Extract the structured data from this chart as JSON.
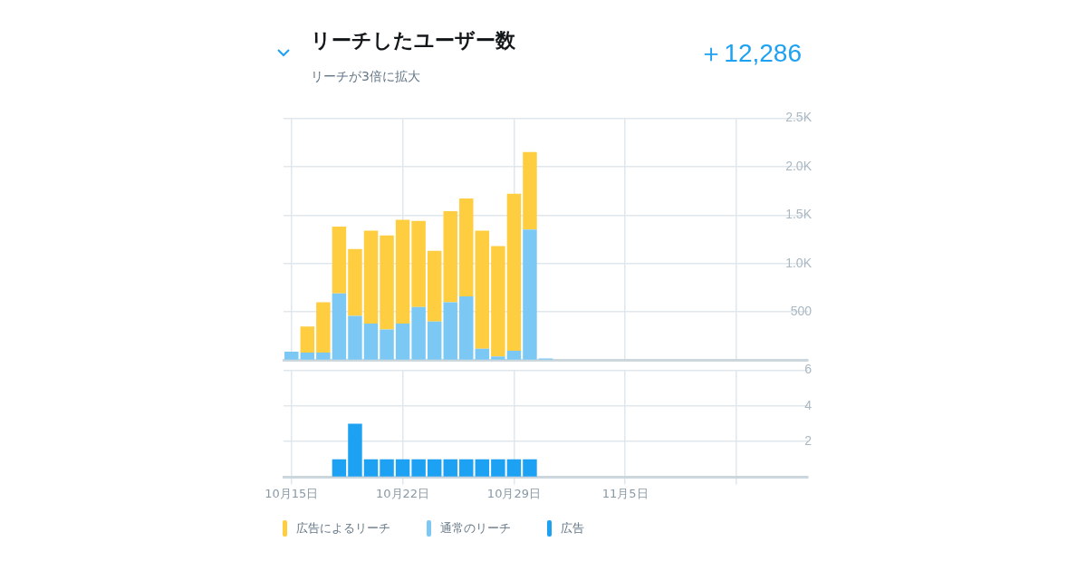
{
  "chart_data": [
    {
      "type": "bar",
      "title": "リーチしたユーザー数",
      "subtitle": "リーチが3倍に拡大",
      "annotations": [
        "＋12,286"
      ],
      "categories": [
        null,
        null,
        null,
        null,
        null,
        null,
        null,
        null,
        null,
        null,
        null,
        null,
        null,
        null,
        null,
        null,
        null,
        null,
        null,
        null,
        null,
        null,
        null,
        null,
        null,
        null,
        null,
        null,
        null,
        null,
        null,
        null,
        null
      ],
      "series": [
        {
          "name": "通常のリーチ",
          "color": "#7cc8f5",
          "values": [
            90,
            80,
            80,
            690,
            460,
            380,
            320,
            380,
            550,
            400,
            600,
            660,
            120,
            40,
            100,
            1350,
            20,
            null,
            null,
            null,
            null,
            null,
            null,
            null,
            null,
            null,
            null,
            null,
            null,
            null,
            null,
            null,
            null
          ]
        },
        {
          "name": "広告によるリーチ",
          "color": "#ffcd40",
          "values": [
            null,
            270,
            520,
            690,
            690,
            960,
            970,
            1070,
            890,
            730,
            940,
            1010,
            1220,
            1140,
            1620,
            800,
            null,
            null,
            null,
            null,
            null,
            null,
            null,
            null,
            null,
            null,
            null,
            null,
            null,
            null,
            null,
            null,
            null
          ]
        }
      ],
      "stacked": true,
      "ylim": [
        0,
        2500
      ],
      "yticks": [
        {
          "value": 0,
          "label": null
        },
        500,
        {
          "value": 1000,
          "label": "1.0K"
        },
        {
          "value": 1500,
          "label": "1.5K"
        },
        {
          "value": 2000,
          "label": "2.0K"
        },
        {
          "value": 2500,
          "label": "2.5K"
        }
      ],
      "grid": true,
      "legend": "bottom",
      "tick_labels": "y"
    },
    {
      "type": "bar",
      "categories": [
        "10月15日",
        null,
        null,
        null,
        null,
        null,
        null,
        "10月22日",
        null,
        null,
        null,
        null,
        null,
        null,
        "10月29日",
        null,
        null,
        null,
        null,
        null,
        null,
        "11月5日",
        null,
        null,
        null,
        null,
        null,
        null,
        null,
        null,
        null,
        null,
        null
      ],
      "series": [
        {
          "name": "広告",
          "color": "#1da1f2",
          "values": [
            null,
            null,
            null,
            1,
            3,
            1,
            1,
            1,
            1,
            1,
            1,
            1,
            1,
            1,
            1,
            1,
            null,
            null,
            null,
            null,
            null,
            null,
            null,
            null,
            null,
            null,
            null,
            null,
            null,
            null,
            null,
            null,
            null
          ]
        }
      ],
      "ylim": [
        0,
        6
      ],
      "yticks": [
        {
          "value": 0,
          "label": null
        },
        2,
        4,
        6
      ],
      "grid": true,
      "legend": "bottom"
    }
  ]
}
